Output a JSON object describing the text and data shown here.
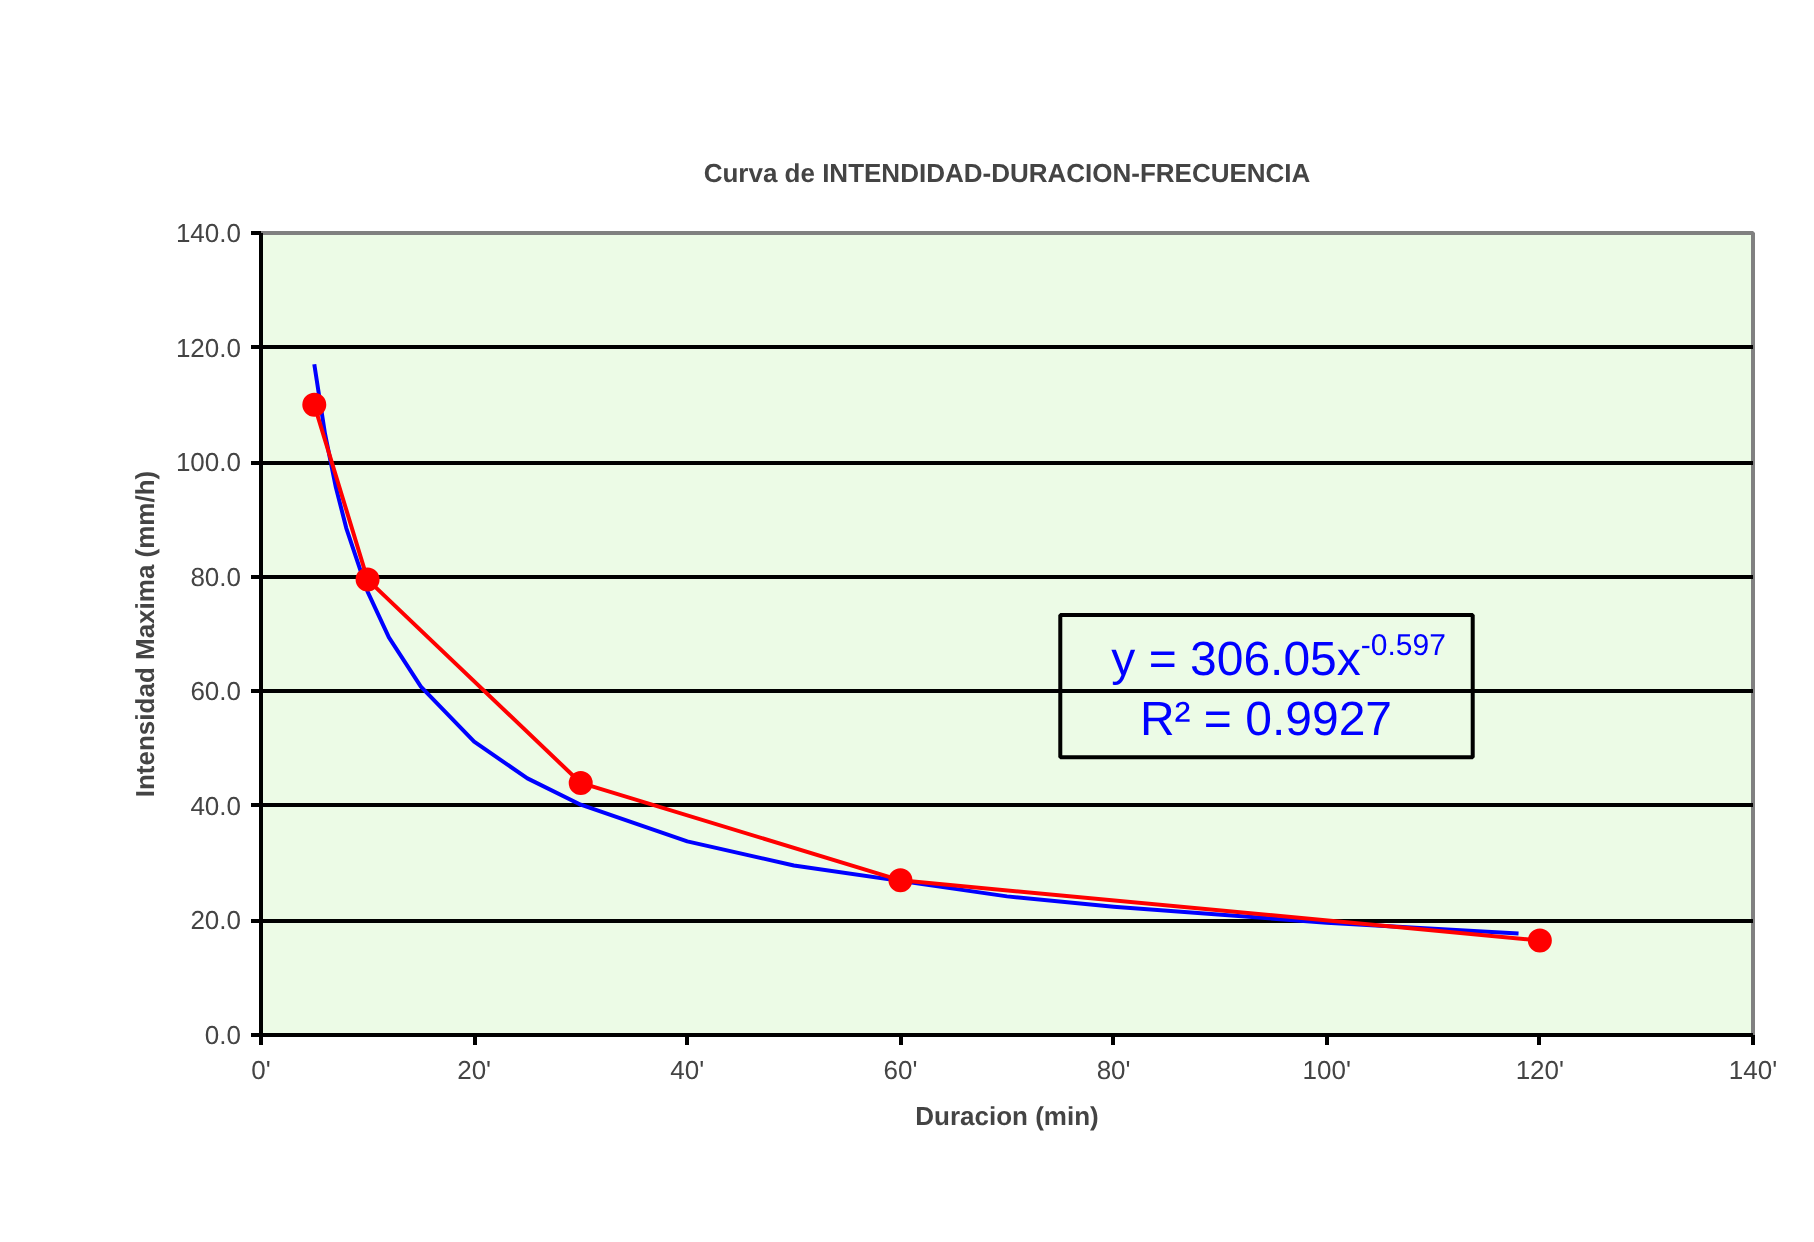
{
  "chart_data": {
    "type": "line",
    "title": "Curva de INTENDIDAD-DURACION-FRECUENCIA",
    "xlabel": "Duracion (min)",
    "ylabel": "Intensidad Maxima (mm/h)",
    "series": [
      {
        "type": "line",
        "color": "#0000ff",
        "marker": "none",
        "x": [
          5,
          6,
          7,
          8,
          10,
          12,
          15,
          20,
          25,
          30,
          40,
          50,
          70,
          80,
          100,
          118
        ],
        "values": [
          117.1,
          105.0,
          95.8,
          88.5,
          77.4,
          69.4,
          60.8,
          51.2,
          44.8,
          40.2,
          33.8,
          29.6,
          24.2,
          22.4,
          19.6,
          17.7
        ]
      },
      {
        "type": "line",
        "color": "#ff0000",
        "marker": "circle",
        "x": [
          5,
          10,
          30,
          60,
          120
        ],
        "values": [
          110.0,
          79.5,
          44.0,
          27.0,
          16.5
        ]
      }
    ],
    "annotations": [
      "y = 306.05x$^{-0.597}$",
      "R² = 0.9927"
    ],
    "xlim": [
      0,
      140
    ],
    "xticks": [
      {
        "value": 0,
        "label": "0'"
      },
      {
        "value": 20,
        "label": "20'"
      },
      {
        "value": 40,
        "label": "40'"
      },
      {
        "value": 60,
        "label": "60'"
      },
      {
        "value": 80,
        "label": "80'"
      },
      {
        "value": 100,
        "label": "100'"
      },
      {
        "value": 120,
        "label": "120'"
      },
      {
        "value": 140,
        "label": "140'"
      }
    ],
    "ylim": [
      0,
      140
    ],
    "yticks": [
      {
        "value": 0,
        "label": "0.0"
      },
      {
        "value": 20,
        "label": "20.0"
      },
      {
        "value": 40,
        "label": "40.0"
      },
      {
        "value": 60,
        "label": "60.0"
      },
      {
        "value": 80,
        "label": "80.0"
      },
      {
        "value": 100,
        "label": "100.0"
      },
      {
        "value": 120,
        "label": "120.0"
      },
      {
        "value": 140,
        "label": "140.0"
      }
    ],
    "grid": "y"
  }
}
